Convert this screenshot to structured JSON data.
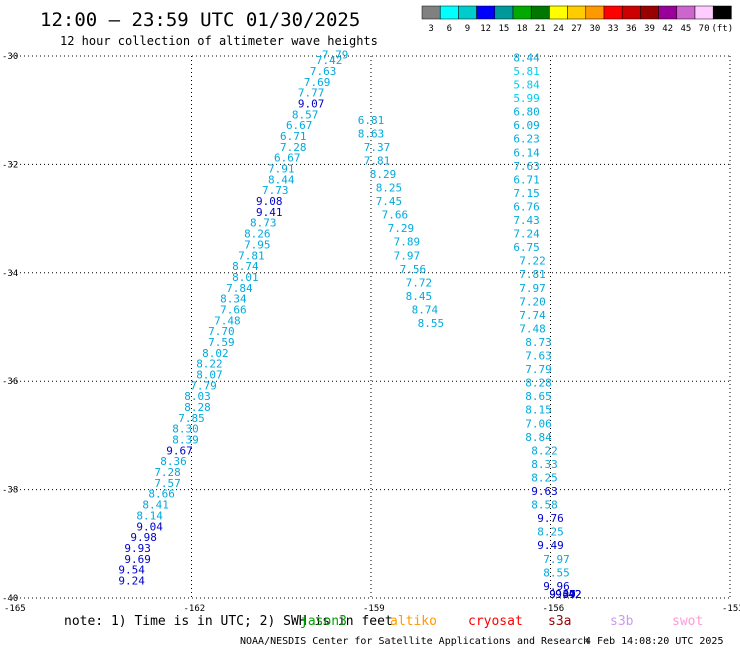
{
  "header": {
    "title": "12:00 – 23:59 UTC 01/30/2025",
    "subtitle": "12 hour collection of altimeter wave heights"
  },
  "colorbar": {
    "labels": [
      "3",
      "6",
      "9",
      "12",
      "15",
      "18",
      "21",
      "24",
      "27",
      "30",
      "33",
      "36",
      "39",
      "42",
      "45",
      "70",
      "(ft)"
    ],
    "colors": [
      "#808080",
      "#00ffff",
      "#00cccc",
      "#0000ff",
      "#009999",
      "#00aa00",
      "#007700",
      "#ffff00",
      "#ffcc00",
      "#ff9900",
      "#ff0000",
      "#cc0000",
      "#990000",
      "#990099",
      "#cc66cc",
      "#ffccff",
      "#000000"
    ]
  },
  "footer": {
    "note": "note: 1) Time is in UTC; 2) SWH is in feet",
    "credit": "NOAA/NESDIS Center for Satellite Applications and Research",
    "timestamp": "4 Feb 14:08:20 UTC 2025",
    "missions": [
      {
        "name": "jason3",
        "color": "#00a000"
      },
      {
        "name": "altiko",
        "color": "#ff9900"
      },
      {
        "name": "cryosat",
        "color": "#ff0000"
      },
      {
        "name": "s3a",
        "color": "#990000"
      },
      {
        "name": "s3b",
        "color": "#cc99ee"
      },
      {
        "name": "swot",
        "color": "#ff99dd"
      }
    ]
  },
  "chart_data": {
    "type": "scatter",
    "xlim": [
      -165,
      -153
    ],
    "ylim": [
      -40,
      -30
    ],
    "xticks": [
      -165,
      -162,
      -159,
      -156,
      -153
    ],
    "yticks": [
      -30,
      -32,
      -34,
      -36,
      -38,
      -40
    ],
    "grid": true,
    "tracks": [
      {
        "mission": "altiko",
        "color": "#ff9900",
        "lon": [
          -163.0,
          -163.0,
          -162.9,
          -162.9,
          -162.8,
          -162.7,
          -162.7,
          -162.6,
          -162.5,
          -162.4,
          -162.4,
          -162.3,
          -162.2,
          -162.1,
          -162.1,
          -162.0,
          -161.9,
          -161.9,
          -161.8,
          -161.7,
          -161.7,
          -161.6,
          -161.5,
          -161.5,
          -161.4,
          -161.3,
          -161.3,
          -161.2,
          -161.1,
          -161.1,
          -161.0,
          -160.9,
          -160.9,
          -160.8,
          -160.7,
          -160.7,
          -160.6,
          -160.5,
          -160.5,
          -160.4,
          -160.3,
          -160.3,
          -160.2,
          -160.1,
          -160.0,
          -160.0,
          -159.9,
          -159.8,
          -159.7,
          -159.6
        ],
        "lat": [
          -39.75,
          -39.55,
          -39.35,
          -39.15,
          -38.95,
          -38.75,
          -38.55,
          -38.35,
          -38.15,
          -37.95,
          -37.75,
          -37.55,
          -37.35,
          -37.15,
          -36.95,
          -36.75,
          -36.55,
          -36.35,
          -36.15,
          -35.95,
          -35.75,
          -35.55,
          -35.35,
          -35.15,
          -34.95,
          -34.75,
          -34.55,
          -34.35,
          -34.15,
          -33.95,
          -33.75,
          -33.55,
          -33.35,
          -33.15,
          -32.95,
          -32.75,
          -32.55,
          -32.35,
          -32.15,
          -31.95,
          -31.75,
          -31.55,
          -31.35,
          -31.15,
          -30.95,
          -30.75,
          -30.55,
          -30.35,
          -30.15,
          -30.05
        ],
        "swh": [
          9.24,
          9.54,
          9.69,
          9.93,
          9.98,
          9.04,
          8.14,
          8.41,
          8.66,
          7.57,
          7.28,
          8.36,
          9.67,
          8.39,
          8.3,
          7.85,
          8.28,
          8.03,
          7.79,
          8.07,
          8.22,
          8.02,
          7.59,
          7.7,
          7.48,
          7.66,
          8.34,
          7.84,
          8.01,
          8.74,
          7.81,
          7.95,
          8.26,
          8.73,
          9.41,
          9.08,
          7.73,
          8.44,
          7.91,
          6.67,
          7.28,
          6.71,
          6.67,
          8.57,
          9.07,
          7.77,
          7.69,
          7.63,
          7.42,
          7.79
        ]
      },
      {
        "mission": "jason3",
        "color": "#00a000",
        "lon": [
          -158.0,
          -158.1,
          -158.2,
          -158.2,
          -158.3,
          -158.4,
          -158.4,
          -158.5,
          -158.6,
          -158.7,
          -158.7,
          -158.8,
          -158.9,
          -158.9,
          -159.0,
          -159.0
        ],
        "lat": [
          -35.0,
          -34.75,
          -34.5,
          -34.25,
          -34.0,
          -33.75,
          -33.5,
          -33.25,
          -33.0,
          -32.75,
          -32.5,
          -32.25,
          -32.0,
          -31.75,
          -31.5,
          -31.25
        ],
        "swh": [
          8.55,
          8.74,
          8.45,
          7.72,
          7.56,
          7.97,
          7.89,
          7.29,
          7.66,
          7.45,
          8.25,
          8.29,
          7.81,
          7.37,
          8.63,
          6.81
        ]
      },
      {
        "mission": "cryosat",
        "color": "#ff0000",
        "lon": [
          -156.4,
          -156.4,
          -156.4,
          -156.4,
          -156.4,
          -156.4,
          -156.4,
          -156.4,
          -156.4,
          -156.4,
          -156.4,
          -156.4,
          -156.4,
          -156.4,
          -156.4,
          -156.3,
          -156.3,
          -156.3,
          -156.3,
          -156.3,
          -156.3,
          -156.2,
          -156.2,
          -156.2,
          -156.2,
          -156.2,
          -156.2,
          -156.2,
          -156.2,
          -156.1,
          -156.1,
          -156.1,
          -156.1,
          -156.1,
          -156.0,
          -156.0,
          -156.0,
          -155.9,
          -155.9,
          -155.9,
          -155.8,
          -155.8,
          -155.8,
          -155.7,
          -155.7,
          -155.7
        ],
        "lat": [
          -30.1,
          -30.35,
          -30.6,
          -30.85,
          -31.1,
          -31.35,
          -31.6,
          -31.85,
          -32.1,
          -32.35,
          -32.6,
          -32.85,
          -33.1,
          -33.35,
          -33.6,
          -33.85,
          -34.1,
          -34.35,
          -34.6,
          -34.85,
          -35.1,
          -35.35,
          -35.6,
          -35.85,
          -36.1,
          -36.35,
          -36.6,
          -36.85,
          -37.1,
          -37.35,
          -37.6,
          -37.85,
          -38.1,
          -38.35,
          -38.6,
          -38.85,
          -39.1,
          -39.35,
          -39.6,
          -39.85,
          -40.0,
          -40.0,
          -40.0,
          -40.0,
          -40.0,
          -40.0
        ],
        "swh": [
          8.44,
          5.81,
          5.84,
          5.99,
          6.8,
          6.09,
          6.23,
          6.14,
          7.63,
          6.71,
          7.15,
          6.76,
          7.43,
          7.24,
          6.75,
          7.22,
          7.81,
          7.97,
          7.2,
          7.74,
          7.48,
          8.73,
          7.63,
          7.79,
          8.28,
          8.65,
          8.15,
          7.06,
          8.84,
          8.22,
          8.33,
          8.25,
          9.63,
          8.58,
          9.76,
          8.25,
          9.49,
          7.97,
          8.55,
          9.96,
          9.37,
          9.09,
          9.49,
          9.42,
          9.42,
          9.42
        ]
      }
    ]
  }
}
